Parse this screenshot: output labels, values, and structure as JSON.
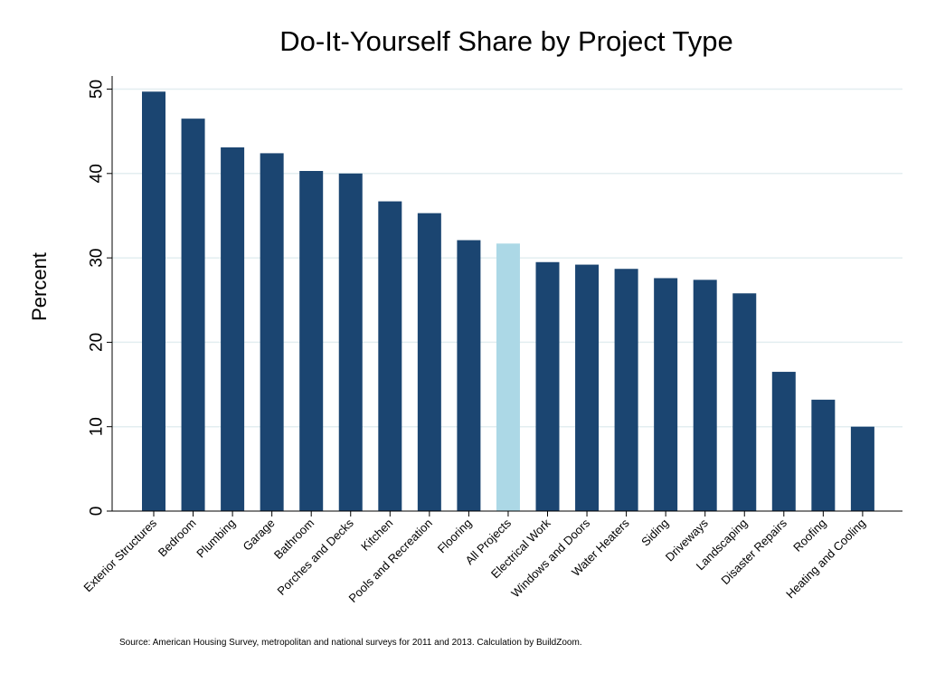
{
  "chart_data": {
    "type": "bar",
    "title": "Do-It-Yourself Share by Project Type",
    "ylabel": "Percent",
    "xlabel": "",
    "ylim": [
      0,
      52
    ],
    "yticks": [
      "0",
      "10",
      "20",
      "30",
      "40",
      "50"
    ],
    "grid": true,
    "categories": [
      "Exterior Structures",
      "Bedroom",
      "Plumbing",
      "Garage",
      "Bathroom",
      "Porches and Decks",
      "Kitchen",
      "Pools and Recreation",
      "Flooring",
      "All Projects",
      "Electrical Work",
      "Windows and Doors",
      "Water Heaters",
      "Siding",
      "Driveways",
      "Landscaping",
      "Disaster Repairs",
      "Roofing",
      "Heating and Cooling"
    ],
    "values": [
      49.7,
      46.5,
      43.1,
      42.4,
      40.3,
      40.0,
      36.7,
      35.3,
      32.1,
      31.7,
      29.5,
      29.2,
      28.7,
      27.6,
      27.4,
      25.8,
      16.5,
      13.2,
      10.0
    ],
    "highlight_category": "All Projects",
    "colors": {
      "bar": "#1b4571",
      "highlight": "#acd8e6",
      "grid": "#e3eef0",
      "axis": "#000000"
    },
    "source": "Source: American Housing Survey, metropolitan and national surveys for 2011 and 2013. Calculation by BuildZoom."
  }
}
